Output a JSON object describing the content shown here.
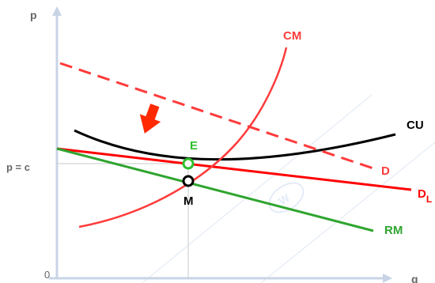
{
  "axes": {
    "y_label": "p",
    "x_label": "q",
    "origin_label": "0",
    "price_level_label": "p = c"
  },
  "curves": {
    "cm": {
      "label": "CM",
      "color": "#ff3b3b"
    },
    "cu": {
      "label": "CU",
      "color": "#000000"
    },
    "d": {
      "label": "D",
      "color": "#ff3b3b",
      "style": "dashed"
    },
    "dl": {
      "label": "D",
      "subscript": "L",
      "color": "#ff0000"
    },
    "rm": {
      "label": "RM",
      "color": "#2fa52f"
    }
  },
  "points": {
    "e": {
      "label": "E",
      "color": "#2fbf2f"
    },
    "m": {
      "label": "M",
      "color": "#000000"
    }
  },
  "shift_arrow": {
    "color": "#ff2a00",
    "icon": "down-left-arrow-icon"
  },
  "axis_color": "#c8d4e6",
  "guide_color": "#c8c8c8"
}
